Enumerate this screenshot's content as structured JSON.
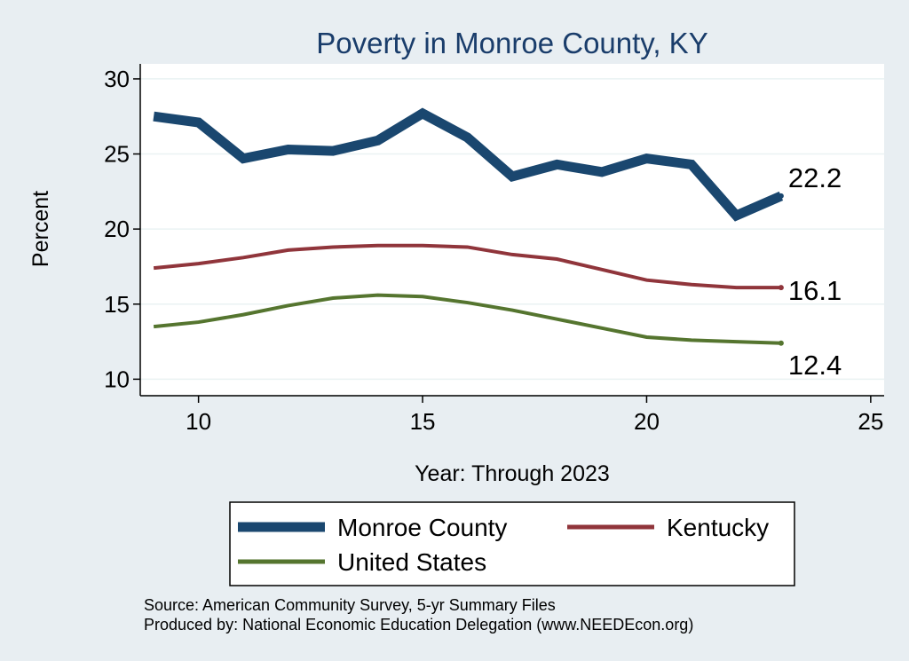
{
  "chart_data": {
    "type": "line",
    "title": "Poverty in Monroe County, KY",
    "xlabel": "Year: Through 2023",
    "ylabel": "Percent",
    "xlim": [
      8.7,
      25.3
    ],
    "ylim": [
      8.9,
      31.0
    ],
    "xticks": [
      10,
      15,
      20,
      25
    ],
    "yticks": [
      10,
      15,
      20,
      25,
      30
    ],
    "x": [
      9,
      10,
      11,
      12,
      13,
      14,
      15,
      16,
      17,
      18,
      19,
      20,
      21,
      22,
      23
    ],
    "series": [
      {
        "name": "Monroe County",
        "color": "#1a476f",
        "values": [
          27.5,
          27.1,
          24.7,
          25.3,
          25.2,
          25.9,
          27.7,
          26.1,
          23.5,
          24.3,
          23.8,
          24.7,
          24.3,
          20.9,
          22.2
        ],
        "end_label": "22.2"
      },
      {
        "name": "Kentucky",
        "color": "#90353b",
        "values": [
          17.4,
          17.7,
          18.1,
          18.6,
          18.8,
          18.9,
          18.9,
          18.8,
          18.3,
          18.0,
          17.3,
          16.6,
          16.3,
          16.1,
          16.1
        ],
        "end_label": "16.1"
      },
      {
        "name": "United States",
        "color": "#55752f",
        "values": [
          13.5,
          13.8,
          14.3,
          14.9,
          15.4,
          15.6,
          15.5,
          15.1,
          14.6,
          14.0,
          13.4,
          12.8,
          12.6,
          12.5,
          12.4
        ],
        "end_label": "12.4"
      }
    ],
    "legend": {
      "position": "bottom",
      "entries": [
        "Monroe County",
        "Kentucky",
        "United States"
      ]
    },
    "notes": [
      "Source: American Community Survey, 5-yr Summary Files",
      "Produced by: National Economic Education Delegation (www.NEEDEcon.org)"
    ]
  }
}
